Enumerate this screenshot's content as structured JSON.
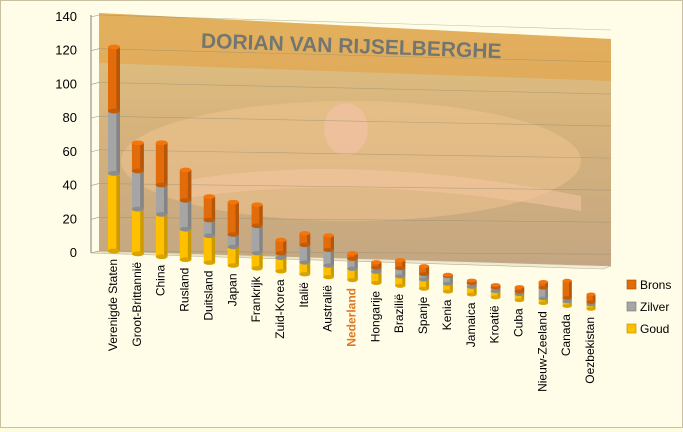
{
  "chart_data": {
    "type": "bar",
    "stacked": true,
    "perspective": "3d",
    "title": "",
    "xlabel": "",
    "ylabel": "",
    "ylim": [
      0,
      140
    ],
    "yticks": [
      0,
      20,
      40,
      60,
      80,
      100,
      120,
      140
    ],
    "grid": true,
    "legend_position": "right",
    "background_image_banner_text": "DORIAN VAN RIJSELBERGHE",
    "highlight_category": "Nederland",
    "highlight_color": "#e07820",
    "categories": [
      "Verenigde Staten",
      "Groot-Brittannië",
      "China",
      "Rusland",
      "Duitsland",
      "Japan",
      "Frankrijk",
      "Zuid-Korea",
      "Italië",
      "Australië",
      "Nederland",
      "Hongarije",
      "Brazilië",
      "Spanje",
      "Kenia",
      "Jamaica",
      "Kroatië",
      "Cuba",
      "Nieuw-Zeeland",
      "Canada",
      "Oezbekistan"
    ],
    "series": [
      {
        "name": "Goud",
        "color": "#ffc000",
        "values": [
          46,
          27,
          26,
          19,
          17,
          12,
          10,
          9,
          8,
          8,
          8,
          8,
          7,
          7,
          6,
          6,
          5,
          5,
          4,
          4,
          4
        ]
      },
      {
        "name": "Zilver",
        "color": "#a5a5a5",
        "values": [
          37,
          23,
          18,
          18,
          10,
          8,
          18,
          3,
          12,
          11,
          7,
          3,
          6,
          4,
          6,
          3,
          3,
          2,
          9,
          3,
          2
        ]
      },
      {
        "name": "Brons",
        "color": "#e36c0a",
        "values": [
          38,
          17,
          26,
          19,
          15,
          21,
          14,
          9,
          8,
          10,
          4,
          4,
          6,
          6,
          1,
          2,
          2,
          4,
          5,
          15,
          7
        ]
      }
    ]
  }
}
